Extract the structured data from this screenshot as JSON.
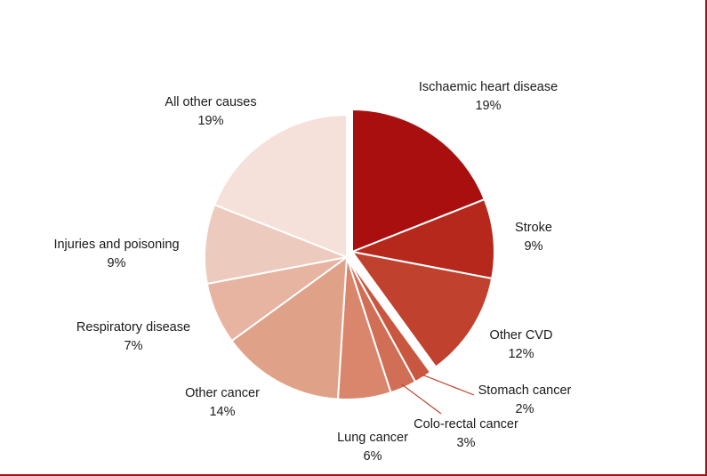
{
  "chart_data": {
    "type": "pie",
    "title": "",
    "slices": [
      {
        "label": "Ischaemic heart disease",
        "value": 19,
        "value_label": "19%",
        "color": "#a90f0e",
        "exploded": true
      },
      {
        "label": "Stroke",
        "value": 9,
        "value_label": "9%",
        "color": "#b5281b",
        "exploded": true
      },
      {
        "label": "Other CVD",
        "value": 12,
        "value_label": "12%",
        "color": "#c0412d",
        "exploded": true
      },
      {
        "label": "Stomach cancer",
        "value": 2,
        "value_label": "2%",
        "color": "#c9573f",
        "exploded": false
      },
      {
        "label": "Colo-rectal cancer",
        "value": 3,
        "value_label": "3%",
        "color": "#d06e56",
        "exploded": false
      },
      {
        "label": "Lung cancer",
        "value": 6,
        "value_label": "6%",
        "color": "#d9866c",
        "exploded": false
      },
      {
        "label": "Other cancer",
        "value": 14,
        "value_label": "14%",
        "color": "#dfa289",
        "exploded": false
      },
      {
        "label": "Respiratory disease",
        "value": 7,
        "value_label": "7%",
        "color": "#e6b4a0",
        "exploded": false
      },
      {
        "label": "Injuries and poisoning",
        "value": 9,
        "value_label": "9%",
        "color": "#eccabd",
        "exploded": false
      },
      {
        "label": "All other causes",
        "value": 19,
        "value_label": "19%",
        "color": "#f6e1da",
        "exploded": false
      }
    ],
    "leader_line_color": "#c0412d"
  }
}
